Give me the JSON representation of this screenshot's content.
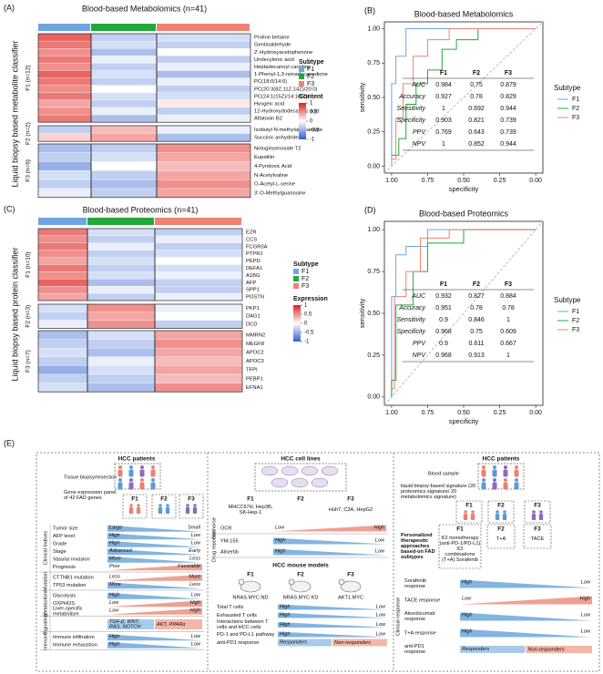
{
  "panel_a": {
    "tag": "(A)",
    "title": "Blood-based Metabolomics (n=41)",
    "y_label": "Liquid biopsy based metabolite classifier",
    "subtype_colors": [
      "#6fa6e0",
      "#22a83c",
      "#ef8172"
    ],
    "groups": [
      {
        "label": "F1 (n=12)",
        "rows": [
          "Proline betaine",
          "Gentisaldehyde",
          "2'-Hydroxyacetophenone",
          "Undecylenic acid",
          "Heptadecanoyl carnitine",
          "1-Phenyl-1,3-nonadecanedione",
          "PC(18:0/14:0)",
          "PC(20:3(8Z,11Z,14Z)/20:0)",
          "PC(24:1(15Z)/14:1(9Z))",
          "Hyogeic acid",
          "12-Hydroxydodecanoic acid",
          "Aflatoxin B2"
        ],
        "values": [
          [
            0.7,
            -0.3,
            -0.2
          ],
          [
            0.6,
            -0.2,
            -0.3
          ],
          [
            0.5,
            -0.4,
            0
          ],
          [
            0.6,
            -0.1,
            -0.3
          ],
          [
            0.5,
            -0.3,
            -0.1
          ],
          [
            0.7,
            -0.2,
            -0.4
          ],
          [
            0.6,
            -0.3,
            -0.1
          ],
          [
            0.5,
            0,
            -0.3
          ],
          [
            0.6,
            -0.2,
            -0.2
          ],
          [
            0.4,
            -0.3,
            0.1
          ],
          [
            0.5,
            -0.1,
            -0.3
          ],
          [
            0.6,
            -0.4,
            -0.1
          ]
        ]
      },
      {
        "label": "F2 (n=2)",
        "rows": [
          "Isobutyl N-methylanthranilate",
          "Succinic anhydride"
        ],
        "values": [
          [
            -0.3,
            0.3,
            -0.1
          ],
          [
            0.2,
            0.4,
            -0.4
          ]
        ]
      },
      {
        "label": "F3 (n=6)",
        "rows": [
          "Notoginsenoside T2",
          "Eupatilin",
          "4-Pyridoxic Acid",
          "N-Acetylvaline",
          "O-Acetyl-L-serine",
          "3'-O-Methylguanosine"
        ],
        "values": [
          [
            -0.4,
            -0.3,
            0.5
          ],
          [
            -0.3,
            -0.2,
            0.4
          ],
          [
            -0.5,
            0,
            0.3
          ],
          [
            -0.2,
            -0.3,
            0.4
          ],
          [
            -0.3,
            -0.4,
            0.5
          ],
          [
            -0.1,
            -0.3,
            0.4
          ]
        ]
      }
    ],
    "legend": {
      "subtype_title": "Subtype",
      "subtypes": [
        "F1",
        "F2",
        "F3"
      ],
      "scale_title": "Content",
      "scale_ticks": [
        1,
        0.5,
        0,
        -0.5,
        -1
      ]
    }
  },
  "panel_b": {
    "tag": "(B)",
    "type": "line",
    "title": "Blood-based Metabolomics",
    "x_label": "specificity",
    "y_label": "sensitivity",
    "xlim": [
      1.05,
      -0.05
    ],
    "ylim": [
      -0.05,
      1.05
    ],
    "xticks": [
      {
        "value": 1,
        "label": "1.00"
      },
      {
        "value": 0.75,
        "label": "0.75"
      },
      {
        "value": 0.5,
        "label": "0.50"
      },
      {
        "value": 0.25,
        "label": "0.25"
      },
      {
        "value": 0,
        "label": "0.00"
      }
    ],
    "yticks": [
      {
        "value": 0,
        "label": "0.00"
      },
      {
        "value": 0.25,
        "label": "0.25"
      },
      {
        "value": 0.5,
        "label": "0.50"
      },
      {
        "value": 0.75,
        "label": "0.75"
      },
      {
        "value": 1,
        "label": "1.00"
      }
    ],
    "legend_title": "Subtype",
    "series": [
      {
        "name": "F1",
        "color": "#6fa6e0",
        "x": [
          1,
          1,
          0.97,
          0.97,
          0.9,
          0.9,
          0
        ],
        "values": [
          0,
          0.6,
          0.6,
          0.8,
          0.8,
          1,
          1
        ]
      },
      {
        "name": "F2",
        "color": "#22a83c",
        "x": [
          1,
          0.95,
          0.95,
          0.9,
          0.9,
          0.83,
          0.83,
          0.75,
          0.75,
          0.65,
          0.65,
          0.55,
          0.55,
          0.4,
          0.4,
          0
        ],
        "values": [
          0.08,
          0.08,
          0.2,
          0.2,
          0.45,
          0.45,
          0.6,
          0.6,
          0.7,
          0.7,
          0.85,
          0.85,
          0.92,
          0.92,
          1,
          1
        ]
      },
      {
        "name": "F3",
        "color": "#ef8172",
        "x": [
          1,
          0.97,
          0.97,
          0.92,
          0.92,
          0.85,
          0.85,
          0.75,
          0.75,
          0.6,
          0.6,
          0
        ],
        "values": [
          0.05,
          0.05,
          0.35,
          0.35,
          0.6,
          0.6,
          0.8,
          0.8,
          0.92,
          0.92,
          1,
          1
        ]
      }
    ],
    "table": {
      "columns": [
        "F1",
        "F2",
        "F3"
      ],
      "rows": [
        {
          "metric": "AUC",
          "values": [
            0.984,
            0.75,
            0.879
          ]
        },
        {
          "metric": "Accuracy",
          "values": [
            0.927,
            0.78,
            0.829
          ]
        },
        {
          "metric": "Sensitivity",
          "values": [
            1,
            0.692,
            0.944
          ]
        },
        {
          "metric": "Specificity",
          "values": [
            0.903,
            0.821,
            0.739
          ]
        },
        {
          "metric": "PPV",
          "values": [
            0.769,
            0.643,
            0.739
          ]
        },
        {
          "metric": "NPV",
          "values": [
            1,
            0.852,
            0.944
          ]
        }
      ]
    }
  },
  "panel_c": {
    "tag": "(C)",
    "title": "Blood-based Proteomics (n=41)",
    "y_label": "Liquid biopsy based protein classifier",
    "subtype_colors": [
      "#6fa6e0",
      "#22a83c",
      "#ef8172"
    ],
    "groups": [
      {
        "label": "F1 (n=10)",
        "rows": [
          "EZR",
          "CCS",
          "FCGR3A",
          "PTPRJ",
          "PEPD",
          "DEFA1",
          "A1BG",
          "AFP",
          "SPP1",
          "POSTN"
        ],
        "values": [
          [
            0.6,
            -0.2,
            -0.3
          ],
          [
            0.5,
            -0.3,
            -0.1
          ],
          [
            0.6,
            -0.1,
            -0.3
          ],
          [
            0.5,
            -0.3,
            -0.2
          ],
          [
            0.4,
            -0.2,
            0
          ],
          [
            0.6,
            -0.3,
            -0.2
          ],
          [
            0.5,
            -0.2,
            -0.1
          ],
          [
            0.7,
            -0.4,
            -0.3
          ],
          [
            0.5,
            -0.1,
            -0.3
          ],
          [
            0.4,
            -0.3,
            -0.1
          ]
        ]
      },
      {
        "label": "F2 (n=3)",
        "rows": [
          "PKP1",
          "DAG1",
          "DCD"
        ],
        "values": [
          [
            -0.2,
            0.5,
            -0.1
          ],
          [
            -0.3,
            0.4,
            0
          ],
          [
            -0.1,
            0.5,
            -0.3
          ]
        ]
      },
      {
        "label": "F3 (n=7)",
        "rows": [
          "MMRN2",
          "MEGF8",
          "APOC2",
          "APOC3",
          "TFPI",
          "PEBP1",
          "EFNA1"
        ],
        "values": [
          [
            -0.4,
            -0.2,
            0.4
          ],
          [
            -0.3,
            -0.3,
            0.5
          ],
          [
            -0.2,
            -0.4,
            0.4
          ],
          [
            -0.3,
            -0.1,
            0.3
          ],
          [
            -0.5,
            -0.2,
            0.4
          ],
          [
            -0.3,
            -0.3,
            0.3
          ],
          [
            -0.2,
            -0.4,
            0.5
          ]
        ]
      }
    ],
    "legend": {
      "subtype_title": "Subtype",
      "subtypes": [
        "F1",
        "F2",
        "F3"
      ],
      "scale_title": "Expression",
      "scale_ticks": [
        1,
        0.5,
        0,
        -0.5,
        -1
      ]
    }
  },
  "panel_d": {
    "tag": "(D)",
    "type": "line",
    "title": "Blood-based Proteomics",
    "x_label": "specificity",
    "y_label": "sensitivity",
    "xlim": [
      1.05,
      -0.05
    ],
    "ylim": [
      -0.05,
      1.05
    ],
    "xticks": [
      {
        "value": 1,
        "label": "1.00"
      },
      {
        "value": 0.75,
        "label": "0.75"
      },
      {
        "value": 0.5,
        "label": "0.50"
      },
      {
        "value": 0.25,
        "label": "0.25"
      },
      {
        "value": 0,
        "label": "0.00"
      }
    ],
    "yticks": [
      {
        "value": 0,
        "label": "0.00"
      },
      {
        "value": 0.25,
        "label": "0.25"
      },
      {
        "value": 0.5,
        "label": "0.50"
      },
      {
        "value": 0.75,
        "label": "0.75"
      },
      {
        "value": 1,
        "label": "1.00"
      }
    ],
    "legend_title": "Subtype",
    "series": [
      {
        "name": "F1",
        "color": "#6fa6e0",
        "x": [
          1,
          1,
          0.97,
          0.97,
          0.9,
          0.9,
          0.75,
          0.75,
          0
        ],
        "values": [
          0,
          0.6,
          0.6,
          0.85,
          0.85,
          0.9,
          0.9,
          1,
          1
        ]
      },
      {
        "name": "F2",
        "color": "#22a83c",
        "x": [
          1,
          1,
          0.97,
          0.97,
          0.85,
          0.85,
          0.75,
          0.75,
          0.5,
          0.5,
          0
        ],
        "values": [
          0,
          0.1,
          0.1,
          0.55,
          0.55,
          0.75,
          0.75,
          0.92,
          0.92,
          1,
          1
        ]
      },
      {
        "name": "F3",
        "color": "#ef8172",
        "x": [
          1,
          0.98,
          0.98,
          0.9,
          0.9,
          0.8,
          0.8,
          0.6,
          0.6,
          0
        ],
        "values": [
          0.05,
          0.05,
          0.6,
          0.6,
          0.75,
          0.75,
          0.95,
          0.95,
          1,
          1
        ]
      }
    ],
    "table": {
      "columns": [
        "F1",
        "F2",
        "F3"
      ],
      "rows": [
        {
          "metric": "AUC",
          "values": [
            0.932,
            0.827,
            0.884
          ]
        },
        {
          "metric": "Accuracy",
          "values": [
            0.951,
            0.78,
            0.78
          ]
        },
        {
          "metric": "Sensitivity",
          "values": [
            0.9,
            0.846,
            1
          ]
        },
        {
          "metric": "Specificity",
          "values": [
            0.968,
            0.75,
            0.609
          ]
        },
        {
          "metric": "PPV",
          "values": [
            0.9,
            0.611,
            0.667
          ]
        },
        {
          "metric": "NPV",
          "values": [
            0.968,
            0.913,
            1
          ]
        }
      ]
    }
  },
  "panel_e": {
    "tag": "(E)",
    "col1": {
      "title": "HCC patients",
      "step1": "Tissue biopsy/resection",
      "step2": "Gene expression panel of 42 FAD genes",
      "subtypes": [
        "F1",
        "F2",
        "F3"
      ],
      "sections": [
        {
          "title": "Clinical Indices",
          "rows": [
            {
              "label": "Tumor size",
              "left": "Large",
              "right": "Small",
              "color": "#5b9bd5",
              "direction": "decreasing"
            },
            {
              "label": "AFP level",
              "left": "High",
              "right": "Low",
              "color": "#5b9bd5",
              "direction": "decreasing"
            },
            {
              "label": "Grade",
              "left": "High",
              "right": "Low",
              "color": "#5b9bd5",
              "direction": "decreasing"
            },
            {
              "label": "Stage",
              "left": "Advanced",
              "right": "Early",
              "color": "#5b9bd5",
              "direction": "decreasing"
            },
            {
              "label": "Vasular invasion",
              "left": "More",
              "right": "Less",
              "color": "#5b9bd5",
              "direction": "decreasing"
            },
            {
              "label": "Prognosis",
              "left": "Poor",
              "right": "Favorable",
              "color": "#e8826f",
              "direction": "increasing"
            }
          ]
        },
        {
          "title": "Mutation",
          "rows": [
            {
              "label": "CTTNB1 mutation",
              "left": "Less",
              "right": "More",
              "color": "#e8826f",
              "direction": "increasing"
            },
            {
              "label": "TP53 mutation",
              "left": "More",
              "right": "Less",
              "color": "#5b9bd5",
              "direction": "decreasing"
            }
          ]
        },
        {
          "title": "Metabolism",
          "rows": [
            {
              "label": "Glycolysis",
              "left": "High",
              "right": "Low",
              "color": "#5b9bd5",
              "direction": "decreasing"
            },
            {
              "label": "OXPHOS",
              "left": "Low",
              "right": "High",
              "color": "#e8826f",
              "direction": "increasing"
            },
            {
              "label": "Liver-specific metabolism",
              "left": "Low",
              "right": "High",
              "color": "#e8826f",
              "direction": "increasing"
            }
          ]
        },
        {
          "title": "Signaling",
          "rows": [
            {
              "left": "TGF-β, WNT, RAS, NOTCH",
              "right": "AKT, PPARα",
              "colors": [
                "#a9cbea",
                "#f4b6a8"
              ]
            }
          ]
        },
        {
          "title": "Immune",
          "rows": [
            {
              "label": "Immune infiltration",
              "left": "High",
              "right": "Low",
              "color": "#5b9bd5",
              "direction": "decreasing"
            },
            {
              "label": "Immune exhaustion",
              "left": "High",
              "right": "Low",
              "color": "#5b9bd5",
              "direction": "decreasing"
            }
          ]
        }
      ]
    },
    "col2": {
      "title": "HCC cell lines",
      "subtypes": [
        "F1",
        "F2",
        "F3"
      ],
      "lines": [
        "MHCC97H, Hep3B, SK-Hep-1",
        "Huh7, C3A, HepG2"
      ],
      "sections": [
        {
          "title": "Seahorse",
          "rows": [
            {
              "label": "OCR",
              "left": "Low",
              "right": "High",
              "color": "#e8826f",
              "direction": "increasing"
            }
          ]
        },
        {
          "title": "Drug reponse",
          "rows": [
            {
              "label": "YM-155",
              "left": "High",
              "right": "Low",
              "color": "#5b9bd5",
              "direction": "decreasing"
            },
            {
              "label": "Alisertib",
              "left": "High",
              "right": "Low",
              "color": "#5b9bd5",
              "direction": "decreasing"
            }
          ]
        }
      ],
      "mouse": {
        "title": "HCC mouse models",
        "subtypes": [
          "F1",
          "F2",
          "F3"
        ],
        "models": [
          "NRAS.MYC.ND",
          "NRAS.MYC.KD",
          "AKT1.MYC"
        ],
        "rows": [
          {
            "label": "Total T cells",
            "left": "High",
            "right": "Low",
            "color": "#5b9bd5",
            "direction": "decreasing"
          },
          {
            "label": "Exhausted T cells",
            "left": "High",
            "right": "Low",
            "color": "#5b9bd5",
            "direction": "decreasing"
          },
          {
            "label": "Interactions between T cells and HCC cells",
            "left": "High",
            "right": "Low",
            "color": "#5b9bd5",
            "direction": "decreasing"
          },
          {
            "label": "PD-1 and PD-L1 pathway",
            "left": "High",
            "right": "Low",
            "color": "#5b9bd5",
            "direction": "decreasing"
          },
          {
            "label": "anti-PD1 response",
            "left": "Responders",
            "right": "Non-responders",
            "colors": [
              "#a9cbea",
              "#f4b6a8"
            ]
          }
        ]
      }
    },
    "col3": {
      "title": "HCC patients",
      "step1": "Blood sample",
      "step2": "liquid biopsy-based signature (20 proteomics signature/ 20 metabolomics signature)",
      "subtypes": [
        "F1",
        "F2",
        "F3"
      ],
      "approach": "Personalized therapeutic approaches based-on FAD subtypes",
      "therapies": [
        "ICI monotherapy (anti-PD-1/PD-L1) ICI combinations (T+A) Sorafenib",
        "T+A",
        "TACE"
      ],
      "sections": [
        {
          "title": "Clinical response",
          "rows": [
            {
              "label": "Sorafenib response",
              "left": "High",
              "right": "Low",
              "color": "#5b9bd5",
              "direction": "decreasing"
            },
            {
              "label": "TACE response",
              "left": "Low",
              "right": "High",
              "color": "#e8826f",
              "direction": "increasing"
            },
            {
              "label": "Atezolizumab response",
              "left": "High",
              "right": "Low",
              "color": "#5b9bd5",
              "direction": "decreasing"
            },
            {
              "label": "T+A response",
              "left": "High",
              "right": "Low",
              "color": "#5b9bd5",
              "direction": "decreasing"
            },
            {
              "label": "anti-PD1 response",
              "left": "Responders",
              "right": "Non-responders",
              "colors": [
                "#a9cbea",
                "#f4b6a8"
              ]
            }
          ]
        }
      ]
    }
  }
}
